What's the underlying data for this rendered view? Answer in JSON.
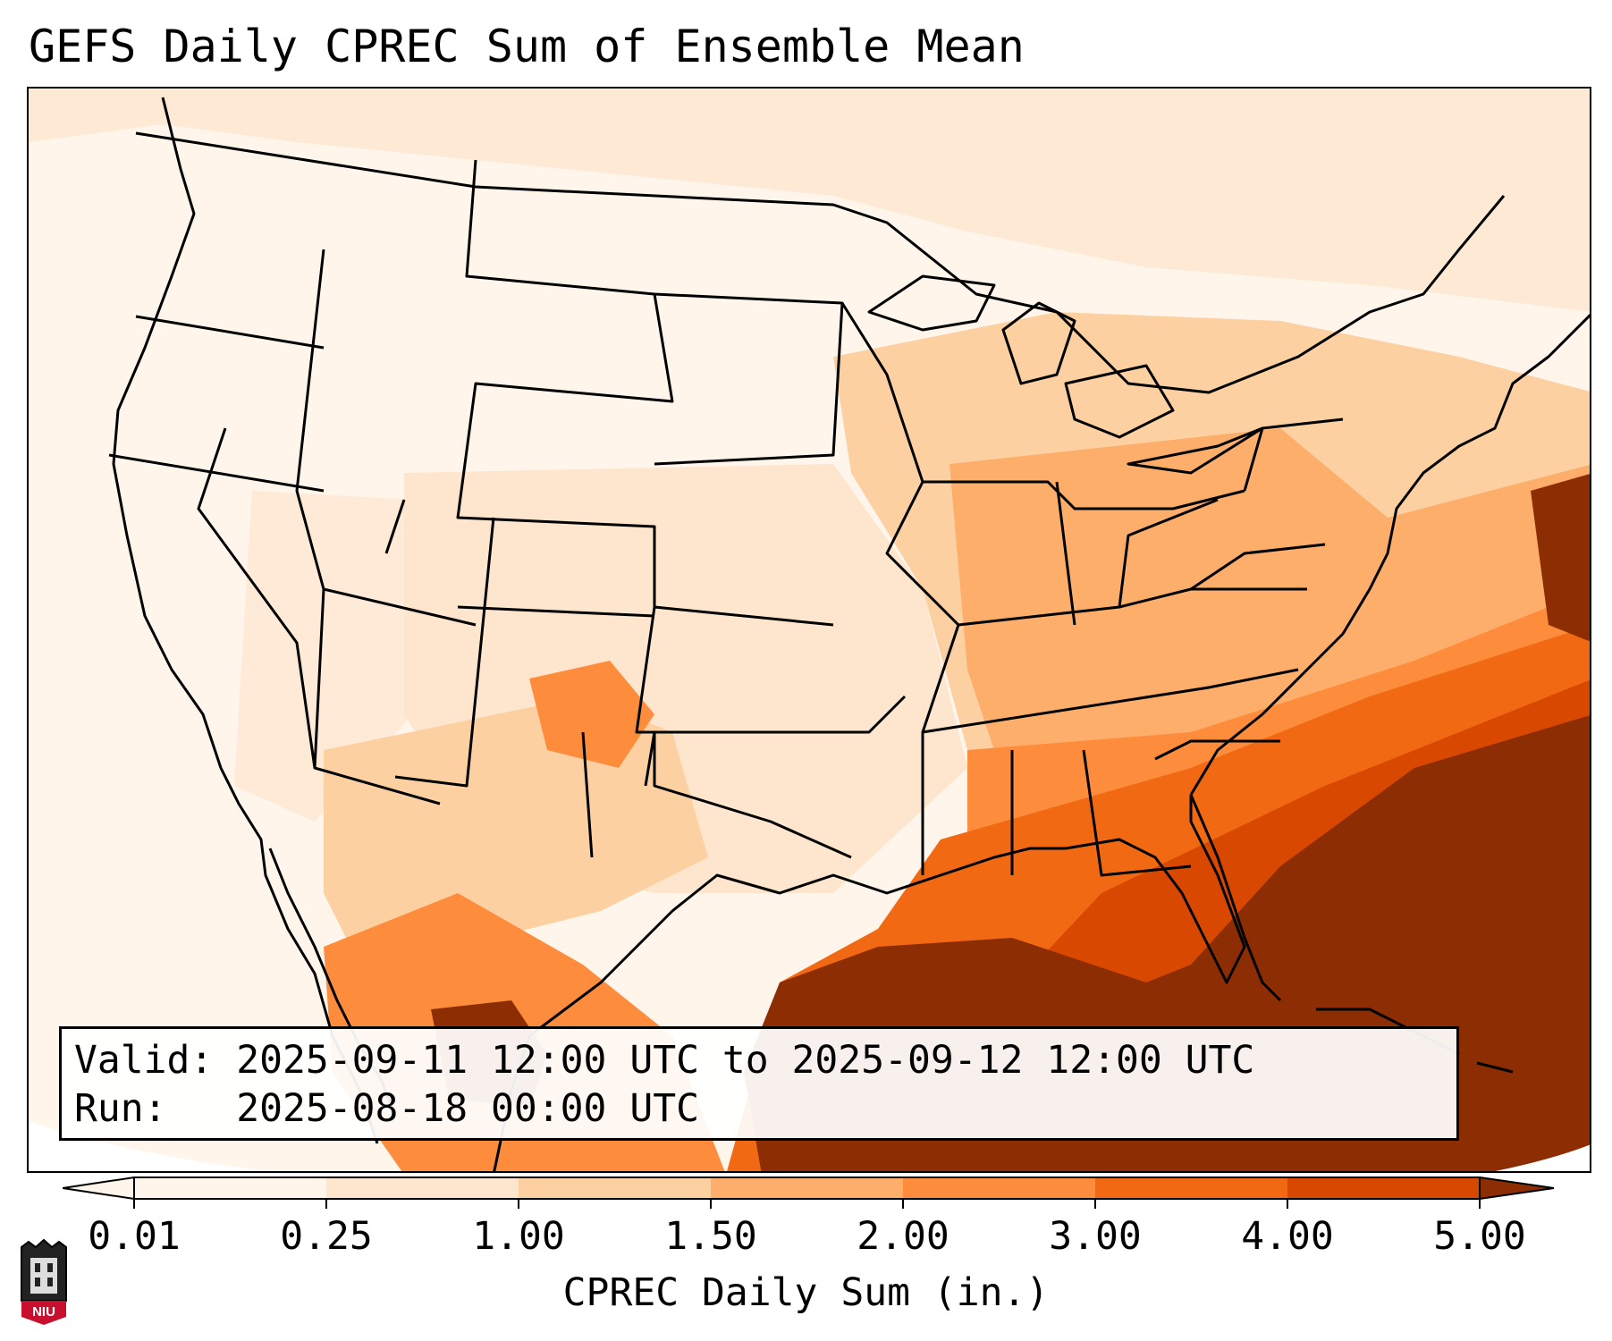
{
  "title": "GEFS Daily CPREC Sum of Ensemble Mean",
  "info": {
    "valid_line": "Valid: 2025-09-11 12:00 UTC to 2025-09-12 12:00 UTC",
    "run_line": "Run:   2025-08-18 00:00 UTC"
  },
  "colorbar": {
    "label": "CPREC Daily Sum (in.)",
    "ticks": [
      "0.01",
      "0.25",
      "1.00",
      "1.50",
      "2.00",
      "3.00",
      "4.00",
      "5.00"
    ],
    "colors": [
      "#fff5eb",
      "#fee6ce",
      "#fdd0a2",
      "#fdae6b",
      "#fd8d3c",
      "#f16913",
      "#d94801",
      "#8c2d04"
    ],
    "extend": "both"
  },
  "logo": {
    "text": "NIU",
    "icon": "niu-logo"
  },
  "colors": {
    "light": "#fff5eb",
    "pale": "#fee6ce",
    "tan": "#fdd0a2",
    "orange_light": "#fdae6b",
    "orange": "#fd8d3c",
    "orange_dark": "#f16913",
    "red_orange": "#d94801",
    "brown": "#8c2d04"
  }
}
